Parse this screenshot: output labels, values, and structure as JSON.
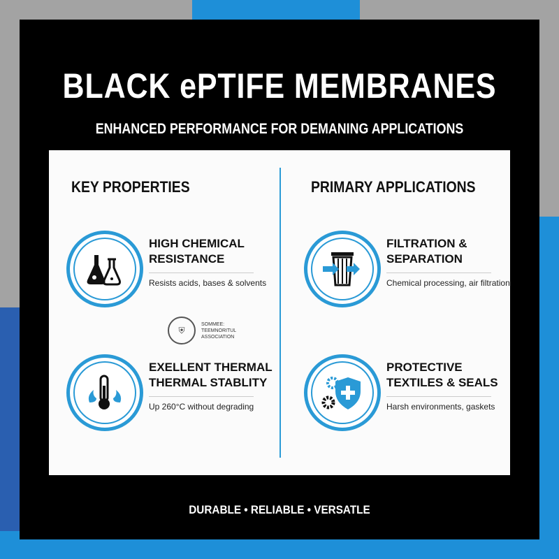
{
  "header": {
    "title": "BLACK ePTIFE MEMBRANES",
    "subtitle": "ENHANCED PERFORMANCE FOR DEMANING APPLICATIONS"
  },
  "left": {
    "heading": "KEY PROPERTIES",
    "items": [
      {
        "icon": "flask-icon",
        "title": "HIGH CHEMICAL RESISTANCE",
        "desc": "Resists acids, bases & solvents"
      },
      {
        "icon": "thermometer-flame-icon",
        "title": "EXELLENT THERMAL THERMAL STABLITY",
        "desc": "Up 260°C without degrading"
      }
    ],
    "seal": {
      "label": "SOMMEE: TEEMNORITUL ASSOCIATION"
    }
  },
  "right": {
    "heading": "PRIMARY APPLICATIONS",
    "items": [
      {
        "icon": "filter-icon",
        "title": "FILTRATION & SEPARATION",
        "desc": "Chemical processing, air filtration"
      },
      {
        "icon": "shield-gear-icon",
        "title": "PROTECTIVE TEXTILES & SEALS",
        "desc": "Harsh environments, gaskets"
      }
    ]
  },
  "footer": {
    "tagline": "DURABLE • RELIABLE • VERSATLE"
  },
  "colors": {
    "accent": "#2a9ad6",
    "panel": "#000000",
    "card": "#fbfbfb",
    "background_gray": "#a3a3a3",
    "background_blue": "#1e8fd8"
  }
}
